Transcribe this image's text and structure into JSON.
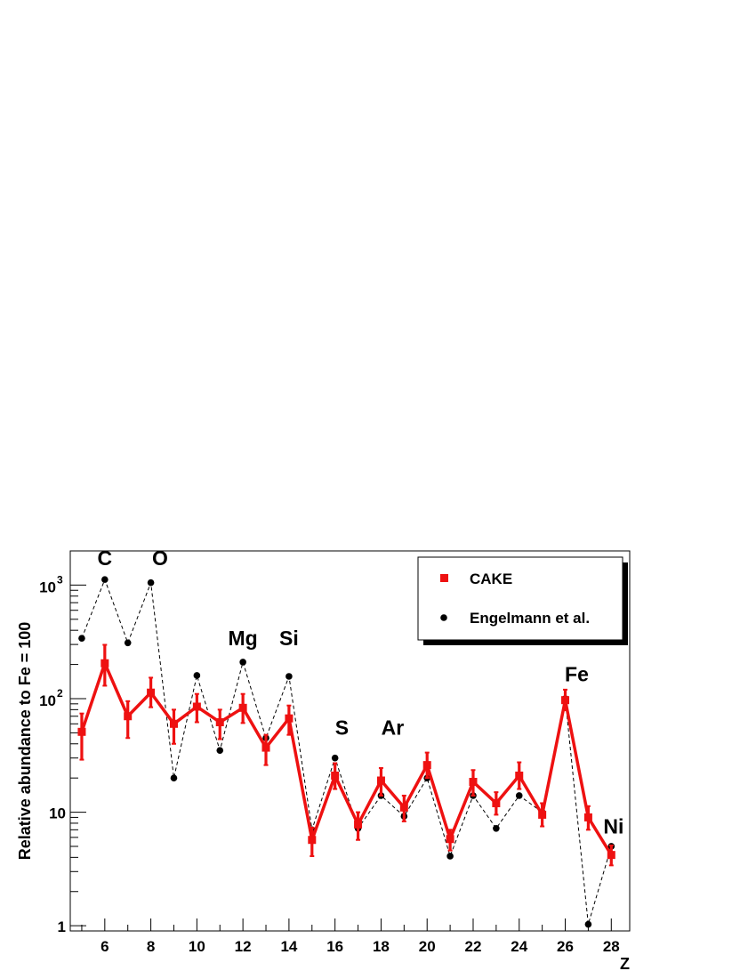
{
  "chart_data": {
    "type": "scatter",
    "title": "",
    "xlabel": "Z",
    "ylabel": "Relative abundance to Fe = 100",
    "xlim": [
      4.5,
      28.8
    ],
    "ylim": [
      0.9,
      2000
    ],
    "yscale": "log",
    "x_ticks": [
      "6",
      "8",
      "10",
      "12",
      "14",
      "16",
      "18",
      "20",
      "22",
      "24",
      "26",
      "28"
    ],
    "y_ticks": [
      {
        "value": 1,
        "base": "1",
        "exp": ""
      },
      {
        "value": 10,
        "base": "10",
        "exp": ""
      },
      {
        "value": 100,
        "base": "10",
        "exp": "2"
      },
      {
        "value": 1000,
        "base": "10",
        "exp": "3"
      }
    ],
    "legend": {
      "position": "top-right",
      "entries": [
        "CAKE",
        "Engelmann et al."
      ]
    },
    "element_labels": [
      {
        "text": "C",
        "x": 6,
        "y": 1500
      },
      {
        "text": "O",
        "x": 8.4,
        "y": 1500
      },
      {
        "text": "Mg",
        "x": 12,
        "y": 295
      },
      {
        "text": "Si",
        "x": 14,
        "y": 295
      },
      {
        "text": "S",
        "x": 16.3,
        "y": 48
      },
      {
        "text": "Ar",
        "x": 18.5,
        "y": 48
      },
      {
        "text": "Fe",
        "x": 26.5,
        "y": 142
      },
      {
        "text": "Ni",
        "x": 28.1,
        "y": 6.5
      }
    ],
    "series": [
      {
        "name": "CAKE",
        "color": "#ee1111",
        "x": [
          5,
          6,
          7,
          8,
          9,
          10,
          11,
          12,
          13,
          14,
          15,
          16,
          17,
          18,
          19,
          20,
          21,
          22,
          23,
          24,
          25,
          26,
          27,
          28
        ],
        "y": [
          51,
          205,
          70,
          113,
          60,
          85,
          62,
          83,
          37,
          67,
          5.7,
          21,
          7.8,
          19,
          11,
          26,
          5.8,
          18.5,
          12,
          21,
          9.5,
          97,
          9,
          4.2
        ],
        "err_low": [
          29,
          130,
          45,
          84,
          40,
          62,
          44,
          61,
          26,
          48,
          4.1,
          16,
          5.7,
          14,
          8.3,
          20,
          4.6,
          14,
          9.5,
          16,
          7.5,
          79,
          7,
          3.4
        ],
        "err_high": [
          74,
          298,
          95,
          153,
          80,
          110,
          80,
          110,
          48,
          87,
          7.3,
          27,
          10,
          24.5,
          14,
          33.5,
          7,
          23.5,
          15,
          27.5,
          12,
          120,
          11.3,
          5.1
        ]
      },
      {
        "name": "Engelmann et al.",
        "color": "#000000",
        "x": [
          5,
          6,
          7,
          8,
          9,
          10,
          11,
          12,
          13,
          14,
          15,
          16,
          17,
          18,
          19,
          20,
          21,
          22,
          23,
          24,
          25,
          26,
          27,
          28
        ],
        "y": [
          340,
          1120,
          310,
          1050,
          20,
          160,
          35,
          210,
          45,
          157,
          7,
          30,
          7.2,
          14,
          9.2,
          20,
          4.1,
          14,
          7.2,
          14,
          10,
          100,
          1.03,
          5
        ]
      }
    ]
  }
}
